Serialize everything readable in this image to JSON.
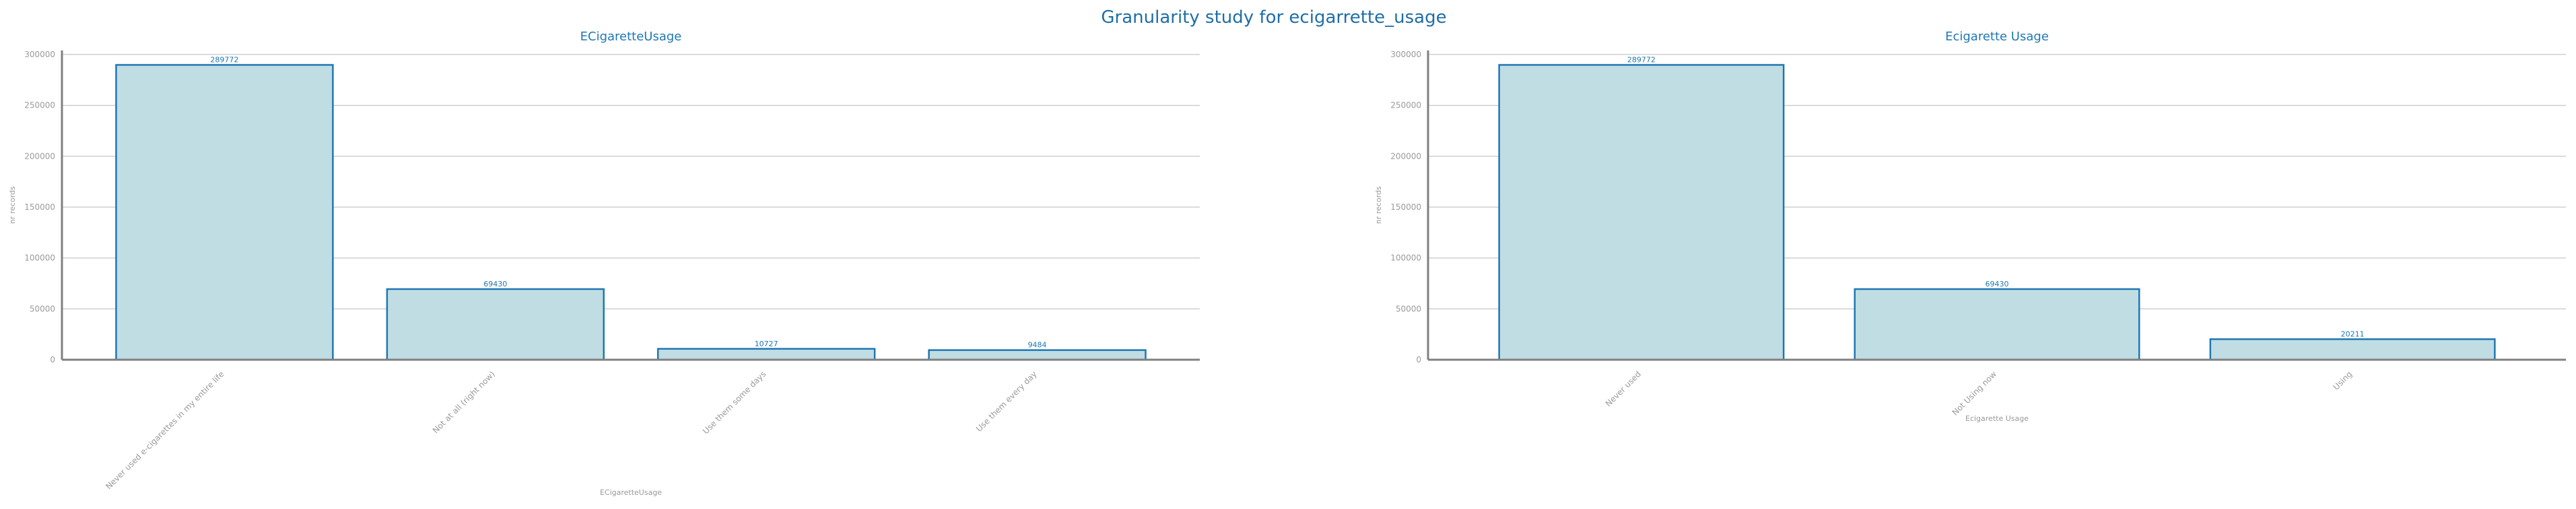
{
  "figure": {
    "title": "Granularity study for ecigarrette_usage"
  },
  "colors": {
    "bar_fill": "#bfdde2",
    "bar_edge": "#1f77b4",
    "title": "#1f77b4",
    "grid": "#cfcfcf",
    "text": "#9a9a9a"
  },
  "chart_data": [
    {
      "type": "bar",
      "title": "ECigaretteUsage",
      "xlabel": "ECigaretteUsage",
      "ylabel": "nr records",
      "categories": [
        "Never used e-cigarettes in my entire life",
        "Not at all (right now)",
        "Use them some days",
        "Use them every day"
      ],
      "values": [
        289772,
        69430,
        10727,
        9484
      ],
      "data_labels": [
        "289772",
        "69430",
        "10727",
        "9484"
      ],
      "yticks": [
        0,
        50000,
        100000,
        150000,
        200000,
        250000,
        300000
      ],
      "ytick_labels": [
        "0",
        "50000",
        "100000",
        "150000",
        "200000",
        "250000",
        "300000"
      ],
      "ylim": [
        0,
        304000
      ],
      "grid": true,
      "legend": "none"
    },
    {
      "type": "bar",
      "title": "Ecigarette Usage",
      "xlabel": "Ecigarette Usage",
      "ylabel": "nr records",
      "categories": [
        "Never used",
        "Not Using now",
        "Using"
      ],
      "values": [
        289772,
        69430,
        20211
      ],
      "data_labels": [
        "289772",
        "69430",
        "20211"
      ],
      "yticks": [
        0,
        50000,
        100000,
        150000,
        200000,
        250000,
        300000
      ],
      "ytick_labels": [
        "0",
        "50000",
        "100000",
        "150000",
        "200000",
        "250000",
        "300000"
      ],
      "ylim": [
        0,
        304000
      ],
      "grid": true,
      "legend": "none"
    }
  ]
}
